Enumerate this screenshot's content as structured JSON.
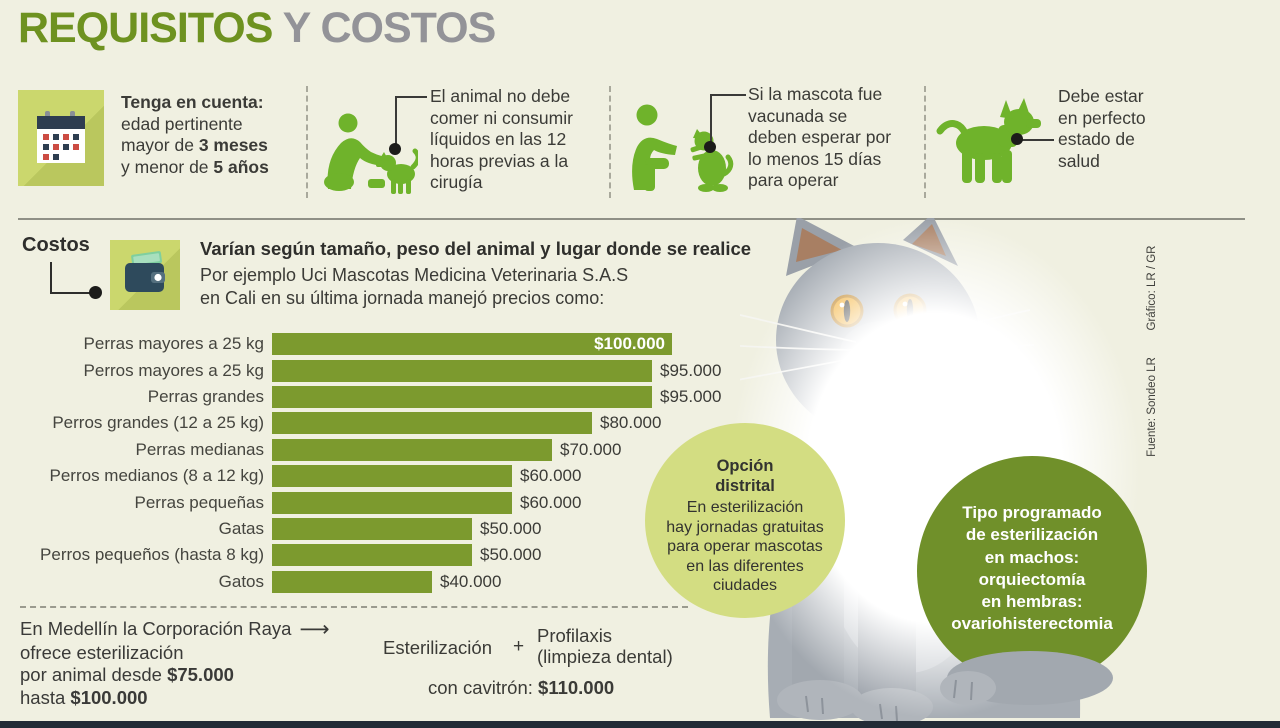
{
  "title": {
    "green": "REQUISITOS",
    "gray": " Y COSTOS"
  },
  "credits": {
    "grafico": "Gráfico: LR / GR",
    "fuente": "Fuente: Sondeo LR"
  },
  "requirements": {
    "item1": {
      "icon": "calendar-icon",
      "heading": "Tenga en cuenta:",
      "line2": "edad pertinente",
      "line3_pre": "mayor de ",
      "line3_bold": "3 meses",
      "line4_pre": "y menor de ",
      "line4_bold": "5 años"
    },
    "item2": {
      "icon": "person-feeding-dog-icon",
      "text": "El animal no debe\ncomer ni consumir\nlíquidos en las 12\nhoras previas a la\ncirugía"
    },
    "item3": {
      "icon": "person-with-dog-icon",
      "text": "Si la mascota fue\nvacunada se\ndeben esperar por\nlo menos 15 días\npara operar"
    },
    "item4": {
      "icon": "dog-icon",
      "text": "Debe estar\nen perfecto\nestado de\nsalud"
    }
  },
  "costos": {
    "label": "Costos",
    "icon": "wallet-icon",
    "intro_bold": "Varían según tamaño, peso del animal y lugar donde se realice",
    "intro_text": "Por ejemplo Uci Mascotas Medicina Veterinaria S.A.S\nen Cali en su última jornada manejó precios como:"
  },
  "chart_data": {
    "type": "bar",
    "orientation": "horizontal",
    "categories": [
      "Perras mayores a 25 kg",
      "Perros mayores a 25 kg",
      "Perras grandes",
      "Perros grandes (12 a 25 kg)",
      "Perras medianas",
      "Perros medianos (8 a 12 kg)",
      "Perras pequeñas",
      "Gatas",
      "Perros pequeños (hasta 8 kg)",
      "Gatos"
    ],
    "values": [
      100000,
      95000,
      95000,
      80000,
      70000,
      60000,
      60000,
      50000,
      50000,
      40000
    ],
    "value_labels": [
      "$100.000",
      "$95.000",
      "$95.000",
      "$80.000",
      "$70.000",
      "$60.000",
      "$60.000",
      "$50.000",
      "$50.000",
      "$40.000"
    ],
    "xlim": [
      0,
      100000
    ],
    "bar_color": "#7c9a2e",
    "title": "",
    "xlabel": "",
    "ylabel": "",
    "grid": false,
    "legend": false
  },
  "circle_distrital": {
    "title_line1": "Opción",
    "title_line2": "distrital",
    "body": "En esterilización\nhay jornadas gratuitas\npara operar mascotas\nen las diferentes\nciudades"
  },
  "circle_tipo": {
    "text": "Tipo programado\nde esterilización\nen machos:\norquiectomía\nen hembras:\novariohisterectomia"
  },
  "medellin": {
    "line1": "En Medellín la Corporación Raya",
    "arrow": "⟶",
    "line2": "ofrece esterilización",
    "line3_pre": "por animal desde ",
    "line3_bold": "$75.000",
    "line4_pre": "hasta ",
    "line4_bold": "$100.000"
  },
  "formula": {
    "left": "Esterilización",
    "plus": "+",
    "right_line1": "Profilaxis",
    "right_line2": "(limpieza dental)",
    "bottom_pre": "con cavitrón: ",
    "bottom_bold": "$110.000"
  },
  "colors": {
    "background": "#f0f0e1",
    "title_green": "#6e9220",
    "title_gray": "#939398",
    "bar_green": "#7c9a2e",
    "icon_green": "#6fb32b",
    "tile_green": "#cbd76d",
    "circle_light": "#d3dd82",
    "circle_dark": "#70902a",
    "bottom_bar": "#222b36",
    "eye_orange": "#f2a61c"
  }
}
